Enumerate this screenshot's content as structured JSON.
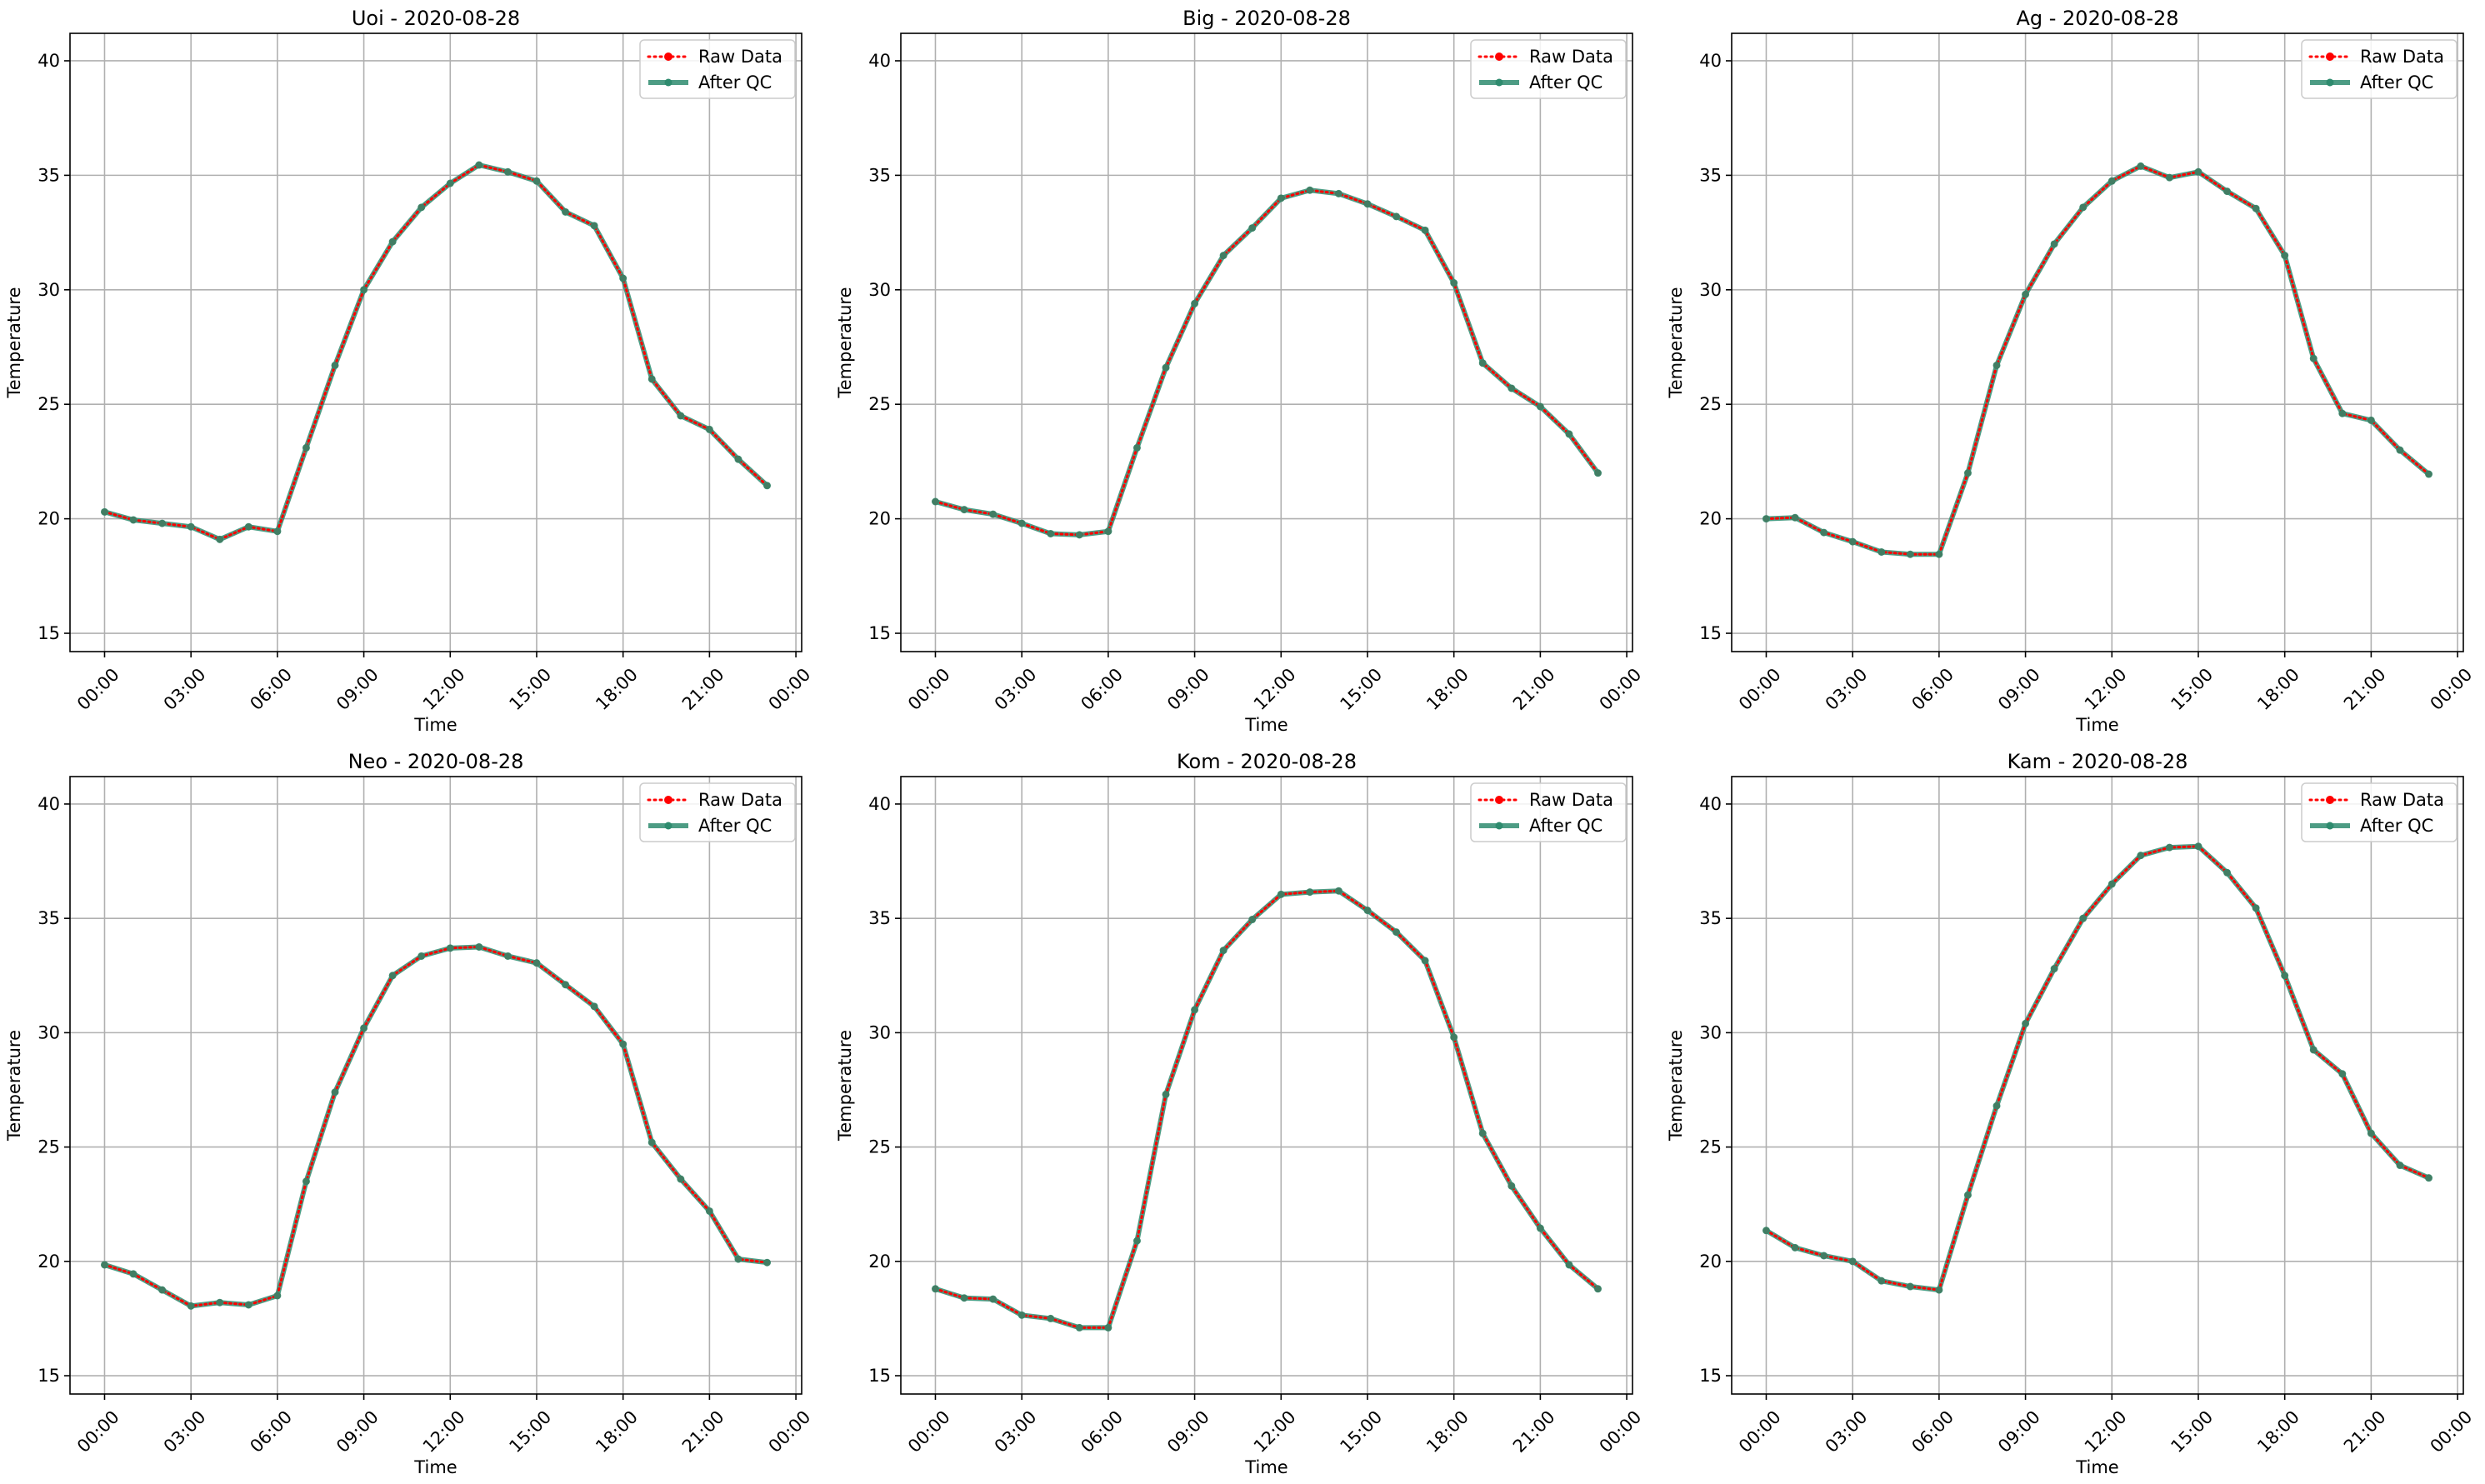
{
  "figure": {
    "raw_color": "#ff0000",
    "qc_color": "#2e8b6e",
    "grid_color": "#b0b0b0"
  },
  "chart_data": [
    {
      "type": "line",
      "title": "Uoi - 2020-08-28",
      "xlabel": "Time",
      "ylabel": "Temperature",
      "x_ticks": [
        "00:00",
        "03:00",
        "06:00",
        "09:00",
        "12:00",
        "15:00",
        "18:00",
        "21:00",
        "00:00"
      ],
      "y_ticks": [
        "15",
        "20",
        "25",
        "30",
        "35",
        "40"
      ],
      "ylim": [
        14.2,
        41.2
      ],
      "xlim_hours": [
        -1.2,
        24.2
      ],
      "grid": true,
      "legend_position": "top-right",
      "x": [
        0,
        1,
        2,
        3,
        4,
        5,
        6,
        7,
        8,
        9,
        10,
        11,
        12,
        13,
        14,
        15,
        16,
        17,
        18,
        19,
        20,
        21,
        22,
        23
      ],
      "series": [
        {
          "name": "Raw Data",
          "style": "dotted-red",
          "values": [
            20.3,
            19.95,
            19.8,
            19.65,
            19.1,
            19.65,
            19.45,
            23.1,
            26.7,
            30.0,
            32.1,
            33.6,
            34.65,
            35.45,
            35.15,
            34.75,
            33.4,
            32.8,
            30.5,
            26.1,
            24.5,
            23.9,
            22.6,
            21.45
          ]
        },
        {
          "name": "After QC",
          "style": "solid-green",
          "values": [
            20.3,
            19.95,
            19.8,
            19.65,
            19.1,
            19.65,
            19.45,
            23.1,
            26.7,
            30.0,
            32.1,
            33.6,
            34.65,
            35.45,
            35.15,
            34.75,
            33.4,
            32.8,
            30.5,
            26.1,
            24.5,
            23.9,
            22.6,
            21.45
          ]
        }
      ]
    },
    {
      "type": "line",
      "title": "Big - 2020-08-28",
      "xlabel": "Time",
      "ylabel": "Temperature",
      "x_ticks": [
        "00:00",
        "03:00",
        "06:00",
        "09:00",
        "12:00",
        "15:00",
        "18:00",
        "21:00",
        "00:00"
      ],
      "y_ticks": [
        "15",
        "20",
        "25",
        "30",
        "35",
        "40"
      ],
      "ylim": [
        14.2,
        41.2
      ],
      "xlim_hours": [
        -1.2,
        24.2
      ],
      "grid": true,
      "legend_position": "top-right",
      "x": [
        0,
        1,
        2,
        3,
        4,
        5,
        6,
        7,
        8,
        9,
        10,
        11,
        12,
        13,
        14,
        15,
        16,
        17,
        18,
        19,
        20,
        21,
        22,
        23
      ],
      "series": [
        {
          "name": "Raw Data",
          "style": "dotted-red",
          "values": [
            20.75,
            20.4,
            20.2,
            19.8,
            19.35,
            19.3,
            19.45,
            23.1,
            26.6,
            29.4,
            31.5,
            32.7,
            34.0,
            34.35,
            34.2,
            33.75,
            33.2,
            32.6,
            30.3,
            26.8,
            25.7,
            24.9,
            23.7,
            22.0
          ]
        },
        {
          "name": "After QC",
          "style": "solid-green",
          "values": [
            20.75,
            20.4,
            20.2,
            19.8,
            19.35,
            19.3,
            19.45,
            23.1,
            26.6,
            29.4,
            31.5,
            32.7,
            34.0,
            34.35,
            34.2,
            33.75,
            33.2,
            32.6,
            30.3,
            26.8,
            25.7,
            24.9,
            23.7,
            22.0
          ]
        }
      ]
    },
    {
      "type": "line",
      "title": "Ag - 2020-08-28",
      "xlabel": "Time",
      "ylabel": "Temperature",
      "x_ticks": [
        "00:00",
        "03:00",
        "06:00",
        "09:00",
        "12:00",
        "15:00",
        "18:00",
        "21:00",
        "00:00"
      ],
      "y_ticks": [
        "15",
        "20",
        "25",
        "30",
        "35",
        "40"
      ],
      "ylim": [
        14.2,
        41.2
      ],
      "xlim_hours": [
        -1.2,
        24.2
      ],
      "grid": true,
      "legend_position": "top-right",
      "x": [
        0,
        1,
        2,
        3,
        4,
        5,
        6,
        7,
        8,
        9,
        10,
        11,
        12,
        13,
        14,
        15,
        16,
        17,
        18,
        19,
        20,
        21,
        22,
        23
      ],
      "series": [
        {
          "name": "Raw Data",
          "style": "dotted-red",
          "values": [
            20.0,
            20.05,
            19.4,
            19.0,
            18.55,
            18.45,
            18.45,
            22.0,
            26.7,
            29.8,
            32.0,
            33.6,
            34.75,
            35.4,
            34.9,
            35.15,
            34.3,
            33.55,
            31.5,
            27.0,
            24.6,
            24.3,
            23.0,
            21.95
          ]
        },
        {
          "name": "After QC",
          "style": "solid-green",
          "values": [
            20.0,
            20.05,
            19.4,
            19.0,
            18.55,
            18.45,
            18.45,
            22.0,
            26.7,
            29.8,
            32.0,
            33.6,
            34.75,
            35.4,
            34.9,
            35.15,
            34.3,
            33.55,
            31.5,
            27.0,
            24.6,
            24.3,
            23.0,
            21.95
          ]
        }
      ]
    },
    {
      "type": "line",
      "title": "Neo - 2020-08-28",
      "xlabel": "Time",
      "ylabel": "Temperature",
      "x_ticks": [
        "00:00",
        "03:00",
        "06:00",
        "09:00",
        "12:00",
        "15:00",
        "18:00",
        "21:00",
        "00:00"
      ],
      "y_ticks": [
        "15",
        "20",
        "25",
        "30",
        "35",
        "40"
      ],
      "ylim": [
        14.2,
        41.2
      ],
      "xlim_hours": [
        -1.2,
        24.2
      ],
      "grid": true,
      "legend_position": "top-right",
      "x": [
        0,
        1,
        2,
        3,
        4,
        5,
        6,
        7,
        8,
        9,
        10,
        11,
        12,
        13,
        14,
        15,
        16,
        17,
        18,
        19,
        20,
        21,
        22,
        23
      ],
      "series": [
        {
          "name": "Raw Data",
          "style": "dotted-red",
          "values": [
            19.85,
            19.45,
            18.75,
            18.05,
            18.2,
            18.1,
            18.5,
            23.5,
            27.4,
            30.2,
            32.5,
            33.35,
            33.7,
            33.75,
            33.35,
            33.05,
            32.1,
            31.15,
            29.5,
            25.2,
            23.6,
            22.2,
            20.1,
            19.95
          ]
        },
        {
          "name": "After QC",
          "style": "solid-green",
          "values": [
            19.85,
            19.45,
            18.75,
            18.05,
            18.2,
            18.1,
            18.5,
            23.5,
            27.4,
            30.2,
            32.5,
            33.35,
            33.7,
            33.75,
            33.35,
            33.05,
            32.1,
            31.15,
            29.5,
            25.2,
            23.6,
            22.2,
            20.1,
            19.95
          ]
        }
      ]
    },
    {
      "type": "line",
      "title": "Kom - 2020-08-28",
      "xlabel": "Time",
      "ylabel": "Temperature",
      "x_ticks": [
        "00:00",
        "03:00",
        "06:00",
        "09:00",
        "12:00",
        "15:00",
        "18:00",
        "21:00",
        "00:00"
      ],
      "y_ticks": [
        "15",
        "20",
        "25",
        "30",
        "35",
        "40"
      ],
      "ylim": [
        14.2,
        41.2
      ],
      "xlim_hours": [
        -1.2,
        24.2
      ],
      "grid": true,
      "legend_position": "top-right",
      "x": [
        0,
        1,
        2,
        3,
        4,
        5,
        6,
        7,
        8,
        9,
        10,
        11,
        12,
        13,
        14,
        15,
        16,
        17,
        18,
        19,
        20,
        21,
        22,
        23
      ],
      "series": [
        {
          "name": "Raw Data",
          "style": "dotted-red",
          "values": [
            18.8,
            18.4,
            18.35,
            17.65,
            17.5,
            17.1,
            17.1,
            20.9,
            27.3,
            31.0,
            33.6,
            34.95,
            36.05,
            36.15,
            36.2,
            35.35,
            34.4,
            33.15,
            29.8,
            25.6,
            23.3,
            21.45,
            19.85,
            18.8
          ]
        },
        {
          "name": "After QC",
          "style": "solid-green",
          "values": [
            18.8,
            18.4,
            18.35,
            17.65,
            17.5,
            17.1,
            17.1,
            20.9,
            27.3,
            31.0,
            33.6,
            34.95,
            36.05,
            36.15,
            36.2,
            35.35,
            34.4,
            33.15,
            29.8,
            25.6,
            23.3,
            21.45,
            19.85,
            18.8
          ]
        }
      ]
    },
    {
      "type": "line",
      "title": "Kam - 2020-08-28",
      "xlabel": "Time",
      "ylabel": "Temperature",
      "x_ticks": [
        "00:00",
        "03:00",
        "06:00",
        "09:00",
        "12:00",
        "15:00",
        "18:00",
        "21:00",
        "00:00"
      ],
      "y_ticks": [
        "15",
        "20",
        "25",
        "30",
        "35",
        "40"
      ],
      "ylim": [
        14.2,
        41.2
      ],
      "xlim_hours": [
        -1.2,
        24.2
      ],
      "grid": true,
      "legend_position": "top-right",
      "x": [
        0,
        1,
        2,
        3,
        4,
        5,
        6,
        7,
        8,
        9,
        10,
        11,
        12,
        13,
        14,
        15,
        16,
        17,
        18,
        19,
        20,
        21,
        22,
        23
      ],
      "series": [
        {
          "name": "Raw Data",
          "style": "dotted-red",
          "values": [
            21.35,
            20.6,
            20.25,
            20.0,
            19.15,
            18.9,
            18.75,
            22.9,
            26.8,
            30.4,
            32.8,
            35.0,
            36.5,
            37.75,
            38.1,
            38.15,
            37.0,
            35.45,
            32.5,
            29.25,
            28.2,
            25.6,
            24.2,
            23.65
          ]
        },
        {
          "name": "After QC",
          "style": "solid-green",
          "values": [
            21.35,
            20.6,
            20.25,
            20.0,
            19.15,
            18.9,
            18.75,
            22.9,
            26.8,
            30.4,
            32.8,
            35.0,
            36.5,
            37.75,
            38.1,
            38.15,
            37.0,
            35.45,
            32.5,
            29.25,
            28.2,
            25.6,
            24.2,
            23.65
          ]
        }
      ]
    }
  ]
}
